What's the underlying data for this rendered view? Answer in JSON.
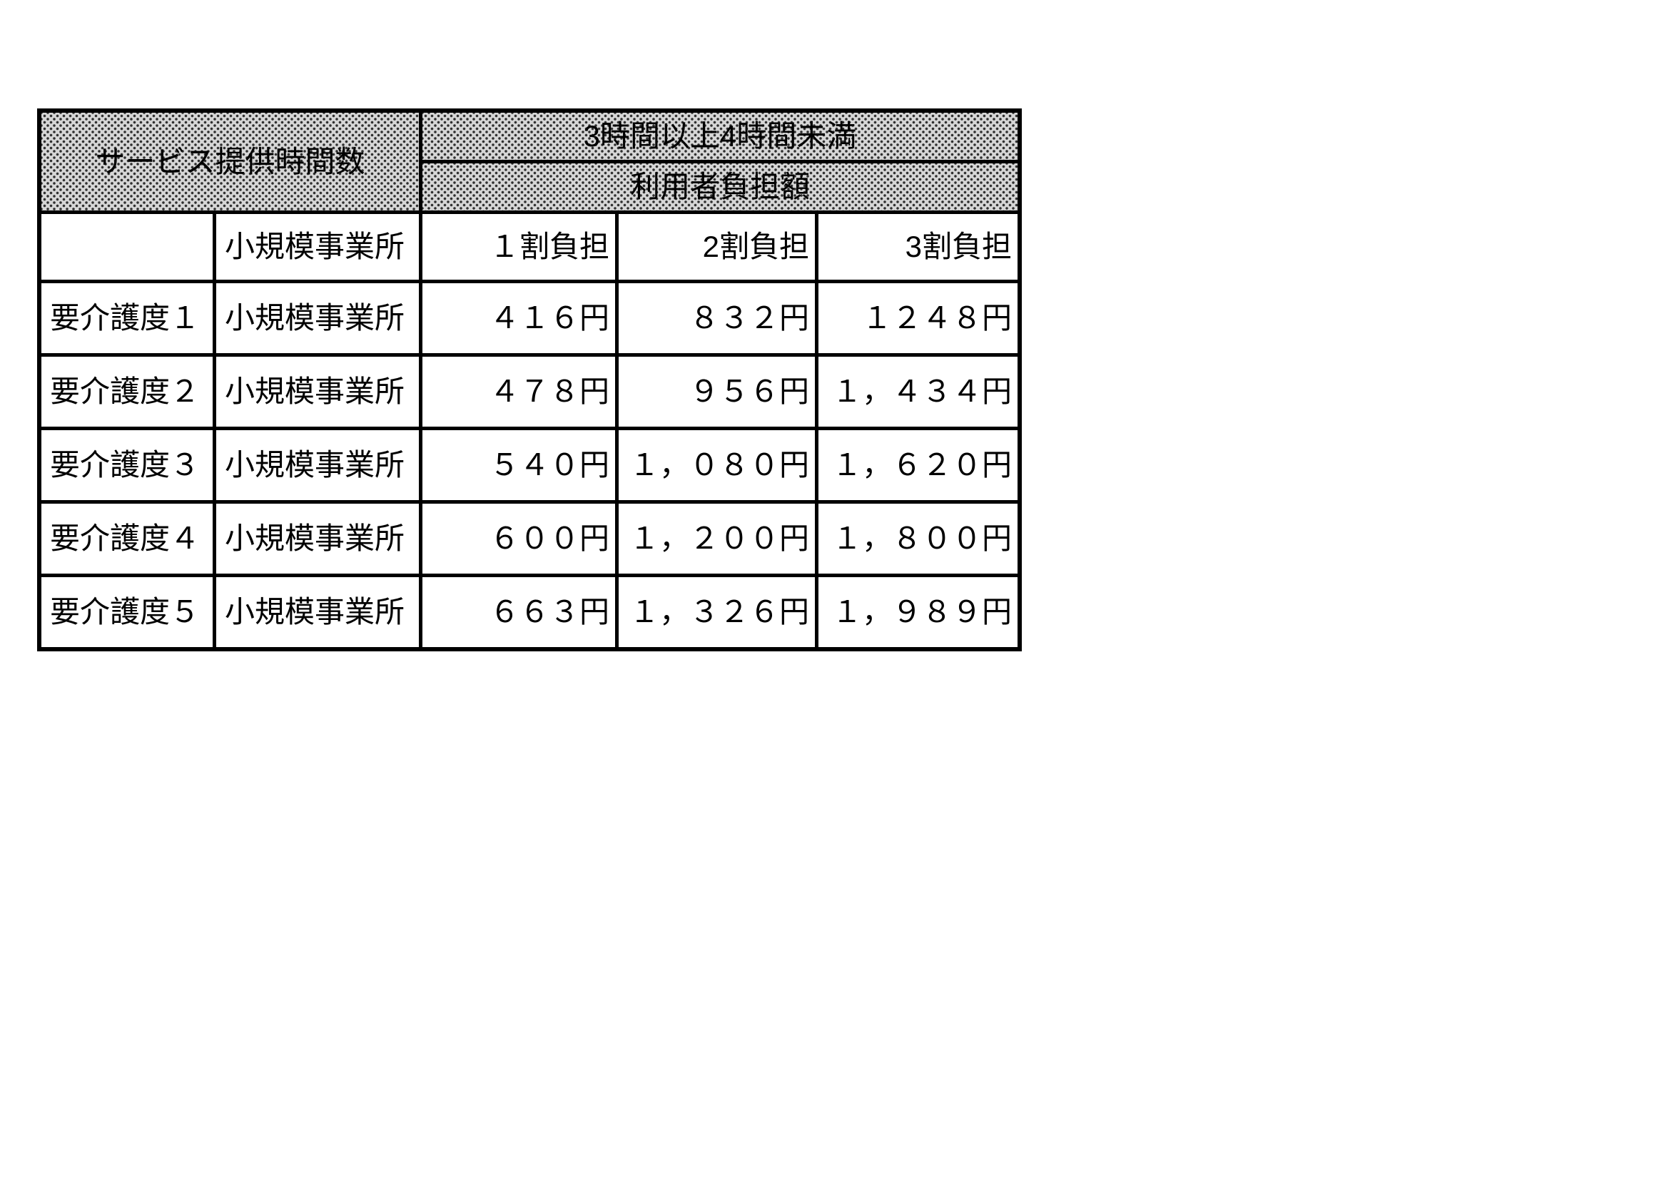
{
  "page": {
    "background": "#ffffff"
  },
  "table": {
    "header": {
      "service_time_label": "サービス提供時間数",
      "time_range_label": "3時間以上4時間未満",
      "user_burden_label": "利用者負担額"
    },
    "column_header_row": {
      "corner": "",
      "office_type": "小規模事業所",
      "burden_10": "１割負担",
      "burden_20": "2割負担",
      "burden_30": "3割負担"
    },
    "rows": [
      {
        "care_level": "要介護度１",
        "office_type": "小規模事業所",
        "pay_10": "４１６円",
        "pay_20": "８３２円",
        "pay_30": "１２４８円"
      },
      {
        "care_level": "要介護度２",
        "office_type": "小規模事業所",
        "pay_10": "４７８円",
        "pay_20": "９５６円",
        "pay_30": "１，４３４円"
      },
      {
        "care_level": "要介護度３",
        "office_type": "小規模事業所",
        "pay_10": "５４０円",
        "pay_20": "１，０８０円",
        "pay_30": "１，６２０円"
      },
      {
        "care_level": "要介護度４",
        "office_type": "小規模事業所",
        "pay_10": "６００円",
        "pay_20": "１，２００円",
        "pay_30": "１，８００円"
      },
      {
        "care_level": "要介護度５",
        "office_type": "小規模事業所",
        "pay_10": "６６３円",
        "pay_20": "１，３２６円",
        "pay_30": "１，９８９円"
      }
    ],
    "colors": {
      "border": "#000000",
      "header_fill": "#d6d6d6",
      "header_dot": "#2f2f2f",
      "text": "#000000"
    }
  }
}
